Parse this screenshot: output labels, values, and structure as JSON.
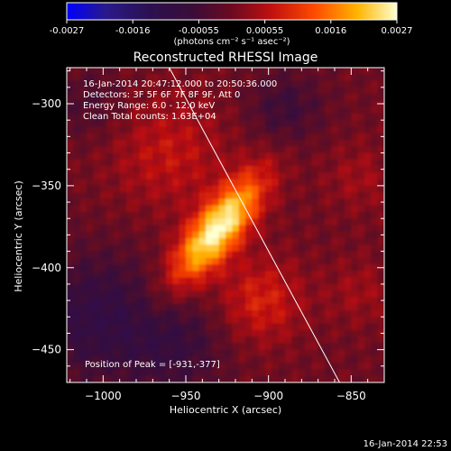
{
  "colorbar": {
    "ticks": [
      "-0.0027",
      "-0.0016",
      "-0.00055",
      "0.00055",
      "0.0016",
      "0.0027"
    ],
    "label": "(photons cm⁻² s⁻¹ asec⁻²)"
  },
  "chart_data": {
    "type": "heatmap",
    "title": "Reconstructed RHESSI Image",
    "xlabel": "Heliocentric X (arcsec)",
    "ylabel": "Heliocentric Y (arcsec)",
    "xlim": [
      -1022,
      -830
    ],
    "ylim": [
      -470,
      -278
    ],
    "x_ticks": [
      -1000,
      -950,
      -900,
      -850
    ],
    "y_ticks": [
      -300,
      -350,
      -400,
      -450
    ],
    "x_tick_labels": [
      "−1000",
      "−950",
      "−900",
      "−850"
    ],
    "y_tick_labels": [
      "−300",
      "−350",
      "−400",
      "−450"
    ],
    "color_range": [
      -0.0027,
      0.0027
    ],
    "peak": [
      -931,
      -377
    ],
    "limb_line": [
      [
        -960,
        -278
      ],
      [
        -857,
        -470
      ]
    ],
    "annotations": [
      "16-Jan-2014 20:47:12.000 to 20:50:36.000",
      "Detectors: 3F 5F 6F 7F 8F 9F, Att 0",
      "Energy Range: 6.0 - 12.0 keV",
      "Clean     Total counts: 1.63E+04"
    ],
    "peak_label": "Position of Peak = [-931,-377]"
  },
  "timestamp": "16-Jan-2014 22:53"
}
